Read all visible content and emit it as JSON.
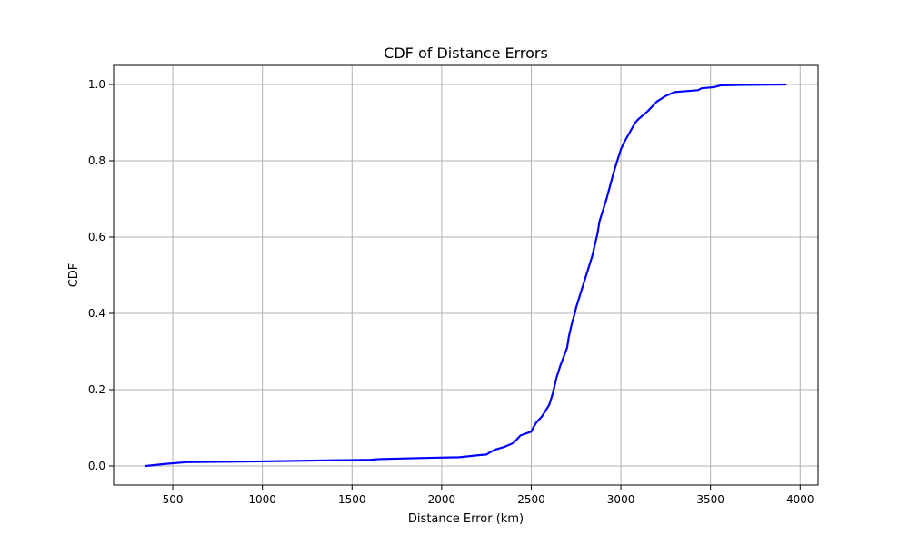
{
  "chart_data": {
    "type": "line",
    "title": "CDF of Distance Errors",
    "xlabel": "Distance Error (km)",
    "ylabel": "CDF",
    "xlim": [
      170,
      4100
    ],
    "ylim": [
      -0.05,
      1.05
    ],
    "xticks": [
      500,
      1000,
      1500,
      2000,
      2500,
      3000,
      3500,
      4000
    ],
    "yticks": [
      0.0,
      0.2,
      0.4,
      0.6,
      0.8,
      1.0
    ],
    "ytick_labels": [
      "0.0",
      "0.2",
      "0.4",
      "0.6",
      "0.8",
      "1.0"
    ],
    "grid": true,
    "line_color": "#0000ff",
    "series": [
      {
        "x": [
          350,
          450,
          575,
          1000,
          1400,
          1600,
          1650,
          1900,
          2100,
          2200,
          2250,
          2270,
          2300,
          2350,
          2400,
          2420,
          2440,
          2470,
          2500,
          2510,
          2530,
          2560,
          2600,
          2620,
          2640,
          2660,
          2680,
          2700,
          2710,
          2720,
          2730,
          2740,
          2750,
          2760,
          2780,
          2800,
          2820,
          2840,
          2860,
          2870,
          2880,
          2900,
          2920,
          2940,
          2960,
          2980,
          3000,
          3020,
          3050,
          3080,
          3100,
          3150,
          3200,
          3250,
          3300,
          3350,
          3430,
          3450,
          3520,
          3560,
          3700,
          3920
        ],
        "y": [
          0.0,
          0.005,
          0.01,
          0.012,
          0.015,
          0.016,
          0.018,
          0.021,
          0.023,
          0.028,
          0.03,
          0.036,
          0.043,
          0.05,
          0.06,
          0.07,
          0.08,
          0.085,
          0.09,
          0.1,
          0.115,
          0.13,
          0.16,
          0.19,
          0.23,
          0.26,
          0.285,
          0.31,
          0.34,
          0.36,
          0.38,
          0.395,
          0.415,
          0.43,
          0.46,
          0.49,
          0.52,
          0.55,
          0.59,
          0.61,
          0.64,
          0.67,
          0.7,
          0.735,
          0.77,
          0.8,
          0.83,
          0.85,
          0.875,
          0.9,
          0.91,
          0.93,
          0.955,
          0.97,
          0.98,
          0.982,
          0.985,
          0.99,
          0.993,
          0.998,
          0.999,
          1.0
        ]
      }
    ]
  }
}
